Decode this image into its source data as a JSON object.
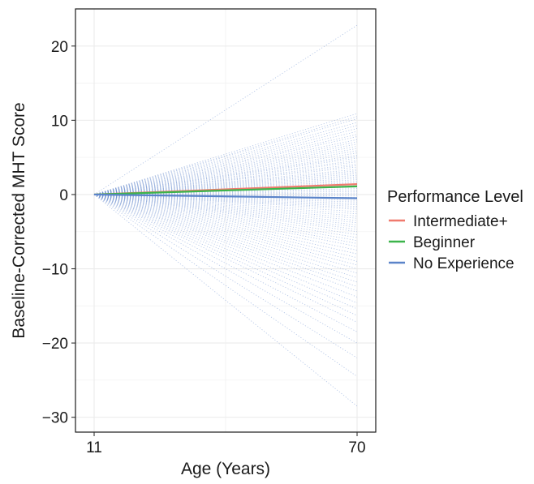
{
  "chart_data": {
    "type": "line",
    "title": "",
    "xlabel": "Age (Years)",
    "ylabel": "Baseline-Corrected MHT Score",
    "xlim": [
      11,
      70
    ],
    "ylim": [
      -32,
      25
    ],
    "x_ticks": [
      11,
      70
    ],
    "y_ticks": [
      -30,
      -20,
      -10,
      0,
      10,
      20
    ],
    "x_tick_labels": [
      "11",
      "70"
    ],
    "y_tick_labels": [
      "−30",
      "−20",
      "−10",
      "0",
      "10",
      "20"
    ],
    "grid": true,
    "legend": {
      "title": "Performance Level",
      "placement": "right"
    },
    "series": [
      {
        "name": "Intermediate+",
        "color": "#f07a6e",
        "x": [
          11,
          70
        ],
        "values": [
          0,
          1.4
        ]
      },
      {
        "name": "Beginner",
        "color": "#3cb44b",
        "x": [
          11,
          70
        ],
        "values": [
          0,
          1.1
        ]
      },
      {
        "name": "No Experience",
        "color": "#5b84c9",
        "x": [
          11,
          70
        ],
        "values": [
          0,
          -0.5
        ]
      }
    ],
    "individual_trajectories": {
      "color": "#6d8fd0",
      "style": "dotted",
      "x": [
        11,
        70
      ],
      "start_value": 0,
      "end_values": [
        22.8,
        10.9,
        10.5,
        10.2,
        9.7,
        9.3,
        8.9,
        8.5,
        8.1,
        7.8,
        7.4,
        7.1,
        6.8,
        6.5,
        6.2,
        5.9,
        5.6,
        5.3,
        5.1,
        4.9,
        4.6,
        4.4,
        4.1,
        3.9,
        3.7,
        3.4,
        3.2,
        3.0,
        2.8,
        2.6,
        2.4,
        2.2,
        2.0,
        1.8,
        1.6,
        1.4,
        1.2,
        1.0,
        0.8,
        0.6,
        0.4,
        0.2,
        0.0,
        -0.2,
        -0.4,
        -0.6,
        -0.8,
        -1.0,
        -1.2,
        -1.4,
        -1.6,
        -1.8,
        -2.0,
        -2.3,
        -2.6,
        -2.9,
        -3.2,
        -3.5,
        -3.8,
        -4.1,
        -4.4,
        -4.7,
        -5.0,
        -5.4,
        -5.8,
        -6.2,
        -6.6,
        -7.0,
        -7.5,
        -8.0,
        -8.5,
        -9.0,
        -9.5,
        -10.0,
        -10.6,
        -11.2,
        -11.8,
        -12.4,
        -13.0,
        -13.8,
        -14.6,
        -15.4,
        -16.3,
        -17.2,
        -18.5,
        -20.0,
        -22.0,
        -24.5,
        -28.5
      ]
    }
  }
}
